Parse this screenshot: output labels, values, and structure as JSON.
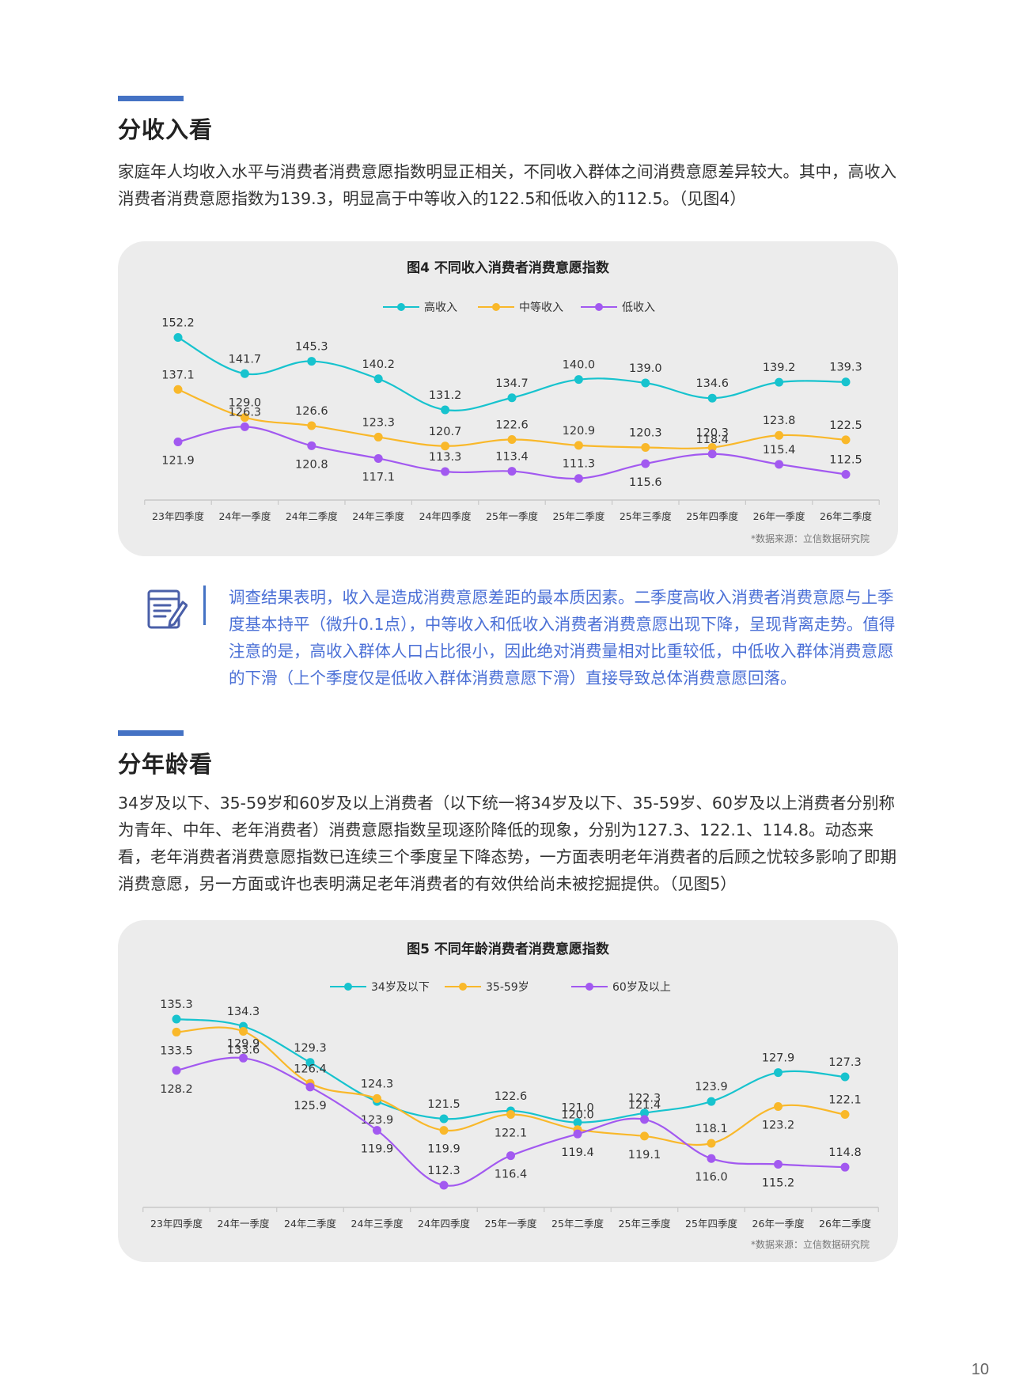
{
  "sections": {
    "income": {
      "title": "分收入看",
      "intro": "家庭年人均收入水平与消费者消费意愿指数明显正相关，不同收入群体之间消费意愿差异较大。其中，高收入消费者消费意愿指数为139.3，明显高于中等收入的122.5和低收入的112.5。（见图4）"
    },
    "age": {
      "title": "分年龄看",
      "intro": "34岁及以下、35-59岁和60岁及以上消费者（以下统一将34岁及以下、35-59岁、60岁及以上消费者分别称为青年、中年、老年消费者）消费意愿指数呈现逐阶降低的现象，分别为127.3、122.1、114.8。动态来看，老年消费者消费意愿指数已连续三个季度呈下降态势，一方面表明老年消费者的后顾之忧较多影响了即期消费意愿，另一方面或许也表明满足老年消费者的有效供给尚未被挖掘提供。（见图5）"
    }
  },
  "callout": {
    "icon": "notepad-pencil-icon",
    "text": "调查结果表明，收入是造成消费意愿差距的最本质因素。二季度高收入消费者消费意愿与上季度基本持平（微升0.1点），中等收入和低收入消费者消费意愿出现下降，呈现背离走势。值得注意的是，高收入群体人口占比很小，因此绝对消费量相对比重较低，中低收入群体消费意愿的下滑（上个季度仅是低收入群体消费意愿下滑）直接导致总体消费意愿回落。"
  },
  "page_number": "10",
  "chart_data": [
    {
      "type": "line",
      "title": "图4  不同收入消费者消费意愿指数",
      "source": "*数据来源：立信数据研究院",
      "categories": [
        "23年四季度",
        "24年一季度",
        "24年二季度",
        "24年三季度",
        "24年四季度",
        "25年一季度",
        "25年二季度",
        "25年三季度",
        "25年四季度",
        "26年一季度",
        "26年二季度"
      ],
      "ylim": [
        100,
        160
      ],
      "legend_position": "top-center",
      "grid": false,
      "series": [
        {
          "name": "高收入",
          "color": "#17c3ce",
          "values": [
            152.2,
            141.7,
            145.3,
            140.2,
            131.2,
            134.7,
            140.0,
            139.0,
            134.6,
            139.2,
            139.3
          ],
          "labels": [
            "152.2",
            "141.7",
            "145.3",
            "140.2",
            "131.2",
            "134.7",
            "140.0",
            "139.0",
            "134.6",
            "139.2",
            "139.3"
          ]
        },
        {
          "name": "中等收入",
          "color": "#f9b82a",
          "values": [
            137.1,
            129.0,
            126.6,
            123.3,
            120.7,
            122.6,
            120.9,
            120.3,
            120.3,
            123.8,
            122.5
          ],
          "labels": [
            "137.1",
            "129.0",
            "126.6",
            "123.3",
            "120.7",
            "122.6",
            "120.9",
            "120.3",
            "120.3",
            "123.8",
            "122.5"
          ]
        },
        {
          "name": "低收入",
          "color": "#a259f0",
          "values": [
            121.9,
            126.3,
            120.8,
            117.1,
            113.3,
            113.4,
            111.3,
            115.6,
            118.4,
            115.4,
            112.5
          ],
          "labels": [
            "121.9",
            "126.3",
            "120.8",
            "117.1",
            "113.3",
            "113.4",
            "111.3",
            "115.6",
            "118.4",
            "115.4",
            "112.5"
          ]
        }
      ]
    },
    {
      "type": "line",
      "title": "图5  不同年龄消费者消费意愿指数",
      "source": "*数据来源：立信数据研究院",
      "categories": [
        "23年四季度",
        "24年一季度",
        "24年二季度",
        "24年三季度",
        "24年四季度",
        "25年一季度",
        "25年二季度",
        "25年三季度",
        "25年四季度",
        "26年一季度",
        "26年二季度"
      ],
      "ylim": [
        100,
        140
      ],
      "legend_position": "top-center",
      "grid": false,
      "series": [
        {
          "name": "34岁及以下",
          "color": "#17c3ce",
          "values": [
            135.3,
            134.3,
            129.3,
            123.9,
            121.5,
            122.6,
            121.0,
            122.3,
            123.9,
            127.9,
            127.3
          ],
          "labels": [
            "135.3",
            "134.3",
            "129.3",
            "123.9",
            "121.5",
            "122.6",
            "121.0",
            "122.3",
            "123.9",
            "127.9",
            "127.3"
          ]
        },
        {
          "name": "35-59岁",
          "color": "#f9b82a",
          "values": [
            133.5,
            133.6,
            126.4,
            124.3,
            119.9,
            122.1,
            120.0,
            119.1,
            118.1,
            123.2,
            122.1
          ],
          "labels": [
            "133.5",
            "133.6",
            "126.4",
            "124.3",
            "119.9",
            "122.1",
            "120.0",
            "119.1",
            "118.1",
            "123.2",
            "122.1"
          ]
        },
        {
          "name": "60岁及以上",
          "color": "#a259f0",
          "values": [
            128.2,
            129.9,
            125.9,
            119.9,
            112.3,
            116.4,
            119.4,
            121.4,
            116.0,
            115.2,
            114.8
          ],
          "labels": [
            "128.2",
            "129.9",
            "125.9",
            "119.9",
            "112.3",
            "116.4",
            "119.4",
            "121.4",
            "116.0",
            "115.2",
            "114.8"
          ]
        }
      ]
    }
  ]
}
